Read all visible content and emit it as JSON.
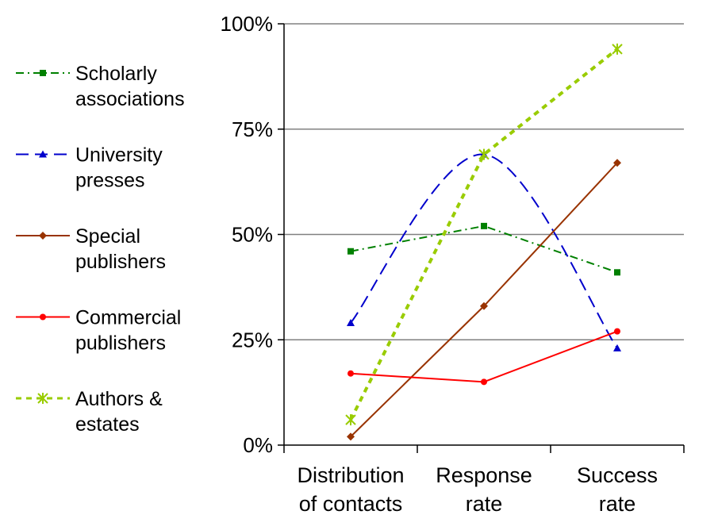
{
  "chart_data": {
    "type": "line",
    "categories": [
      [
        "Distribution",
        "of contacts"
      ],
      [
        "Response",
        "rate"
      ],
      [
        "Success",
        "rate"
      ]
    ],
    "y_tick_labels": [
      "0%",
      "25%",
      "50%",
      "75%",
      "100%"
    ],
    "ylim": [
      0,
      100
    ],
    "y_unit": "%",
    "grid": true,
    "legend_position": "left",
    "series": [
      {
        "name": [
          "Scholarly",
          "associations"
        ],
        "values": [
          46,
          52,
          41
        ],
        "color": "#008000",
        "marker": "square",
        "dash": "dash-dot",
        "smooth": false
      },
      {
        "name": [
          "University",
          "presses"
        ],
        "values": [
          29,
          69,
          23
        ],
        "color": "#0000cc",
        "marker": "triangle",
        "dash": "long-dash",
        "smooth": true
      },
      {
        "name": [
          "Special",
          "publishers"
        ],
        "values": [
          2,
          33,
          67
        ],
        "color": "#993300",
        "marker": "diamond",
        "dash": "solid",
        "smooth": false
      },
      {
        "name": [
          "Commercial",
          "publishers"
        ],
        "values": [
          17,
          15,
          27
        ],
        "color": "#ff0000",
        "marker": "circle",
        "dash": "solid",
        "smooth": false
      },
      {
        "name": [
          "Authors &",
          "estates"
        ],
        "values": [
          6,
          69,
          94
        ],
        "color": "#99cc00",
        "marker": "star",
        "dash": "dotted-thick",
        "smooth": false
      }
    ]
  }
}
